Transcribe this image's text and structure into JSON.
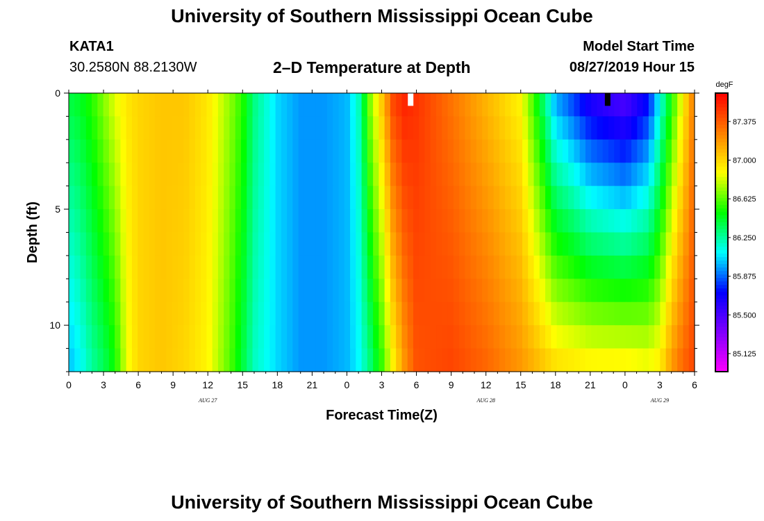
{
  "page": {
    "title_top": "University of Southern Mississippi Ocean Cube",
    "title_bottom": "University of Southern Mississippi Ocean Cube",
    "station_id": "KATA1",
    "station_coords": "30.2580N 88.2130W",
    "plot_title": "2–D Temperature at Depth",
    "model_start_label": "Model Start Time",
    "model_start_value": "08/27/2019 Hour 15"
  },
  "chart_data": {
    "type": "heatmap",
    "title": "2–D Temperature at Depth",
    "xlabel": "Forecast Time(Z)",
    "ylabel": "Depth (ft)",
    "colorbar_unit": "degF",
    "xlim": [
      0,
      54
    ],
    "ylim": [
      0,
      12
    ],
    "y_inverted": true,
    "x_tick_values": [
      0,
      3,
      6,
      9,
      12,
      15,
      18,
      21,
      24,
      27,
      30,
      33,
      36,
      39,
      42,
      45,
      48,
      51,
      54
    ],
    "x_tick_labels": [
      "0",
      "3",
      "6",
      "9",
      "12",
      "15",
      "18",
      "21",
      "0",
      "3",
      "6",
      "9",
      "12",
      "15",
      "18",
      "21",
      "0",
      "3",
      "6"
    ],
    "x_date_labels": [
      {
        "x": 12,
        "label": "AUG 27"
      },
      {
        "x": 36,
        "label": "AUG 28"
      },
      {
        "x": 51,
        "label": "AUG 29"
      }
    ],
    "y_tick_values": [
      0,
      5,
      10
    ],
    "y_tick_labels": [
      "0",
      "5",
      "10"
    ],
    "color_scale": {
      "min": 84.95,
      "max": 87.65,
      "tick_values": [
        85.125,
        85.5,
        85.875,
        86.25,
        86.625,
        87.0,
        87.375
      ],
      "tick_labels": [
        "85.125",
        "85.500",
        "85.875",
        "86.250",
        "86.625",
        "87.000",
        "87.375"
      ]
    },
    "surface_profile_degF": {
      "time_hours": [
        0,
        1,
        2,
        3,
        4,
        5,
        6,
        8,
        10,
        12,
        14,
        15,
        16,
        18,
        20,
        22,
        24,
        25,
        26,
        27,
        28,
        29,
        30,
        33,
        36,
        39,
        40,
        41,
        42,
        43,
        45,
        48,
        50,
        51,
        52,
        53,
        54
      ],
      "temp": [
        86.4,
        86.45,
        86.55,
        86.7,
        86.85,
        86.95,
        87.0,
        87.05,
        87.05,
        86.95,
        86.7,
        86.55,
        86.3,
        86.05,
        85.95,
        85.95,
        86.0,
        86.2,
        86.7,
        87.05,
        87.45,
        87.55,
        87.5,
        87.3,
        87.1,
        86.9,
        86.6,
        86.3,
        85.95,
        85.85,
        85.6,
        85.45,
        85.7,
        86.1,
        86.5,
        86.9,
        87.3
      ]
    },
    "bottom_profile_degF": {
      "time_hours": [
        0,
        1,
        2,
        3,
        4,
        5,
        6,
        8,
        10,
        12,
        14,
        15,
        16,
        18,
        20,
        22,
        24,
        25,
        26,
        27,
        28,
        29,
        30,
        33,
        36,
        39,
        42,
        45,
        48,
        50,
        51,
        52,
        53,
        54
      ],
      "temp": [
        86.0,
        86.1,
        86.25,
        86.35,
        86.5,
        86.85,
        87.0,
        87.05,
        87.0,
        86.9,
        86.6,
        86.4,
        86.2,
        86.05,
        85.95,
        85.95,
        86.0,
        86.1,
        86.3,
        86.55,
        86.9,
        87.2,
        87.4,
        87.45,
        87.35,
        87.2,
        87.0,
        86.95,
        86.95,
        86.9,
        86.95,
        87.2,
        87.35,
        87.45
      ]
    },
    "missing_markers": [
      {
        "x": 29.5,
        "depth": 0.3,
        "color": "#ffffff"
      },
      {
        "x": 46.5,
        "depth": 0.3,
        "color": "#000000"
      }
    ]
  }
}
